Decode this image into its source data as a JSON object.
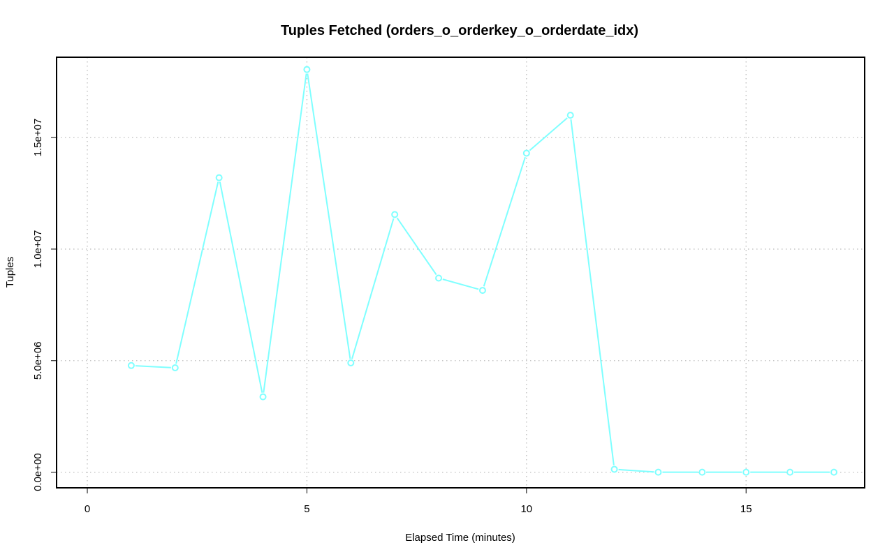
{
  "chart_data": {
    "type": "line",
    "title": "Tuples Fetched (orders_o_orderkey_o_orderdate_idx)",
    "xlabel": "Elapsed Time (minutes)",
    "ylabel": "Tuples",
    "xlim": [
      -0.7,
      17.7
    ],
    "ylim": [
      -700000,
      18600000
    ],
    "x_ticks": [
      0,
      5,
      10,
      15
    ],
    "x_tick_labels": [
      "0",
      "5",
      "10",
      "15"
    ],
    "y_ticks": [
      0,
      5000000,
      10000000,
      15000000
    ],
    "y_tick_labels": [
      "0.0e+00",
      "5.0e+06",
      "1.0e+07",
      "1.5e+07"
    ],
    "grid": true,
    "series": [
      {
        "color": "#7fffff",
        "x": [
          1,
          2,
          3,
          4,
          5,
          6,
          7,
          8,
          9,
          10,
          11,
          12,
          13,
          14,
          15,
          16,
          17
        ],
        "y": [
          4780000,
          4680000,
          13200000,
          3380000,
          18050000,
          4900000,
          11550000,
          8700000,
          8150000,
          14300000,
          16000000,
          130000,
          0,
          0,
          0,
          0,
          0
        ]
      }
    ]
  }
}
